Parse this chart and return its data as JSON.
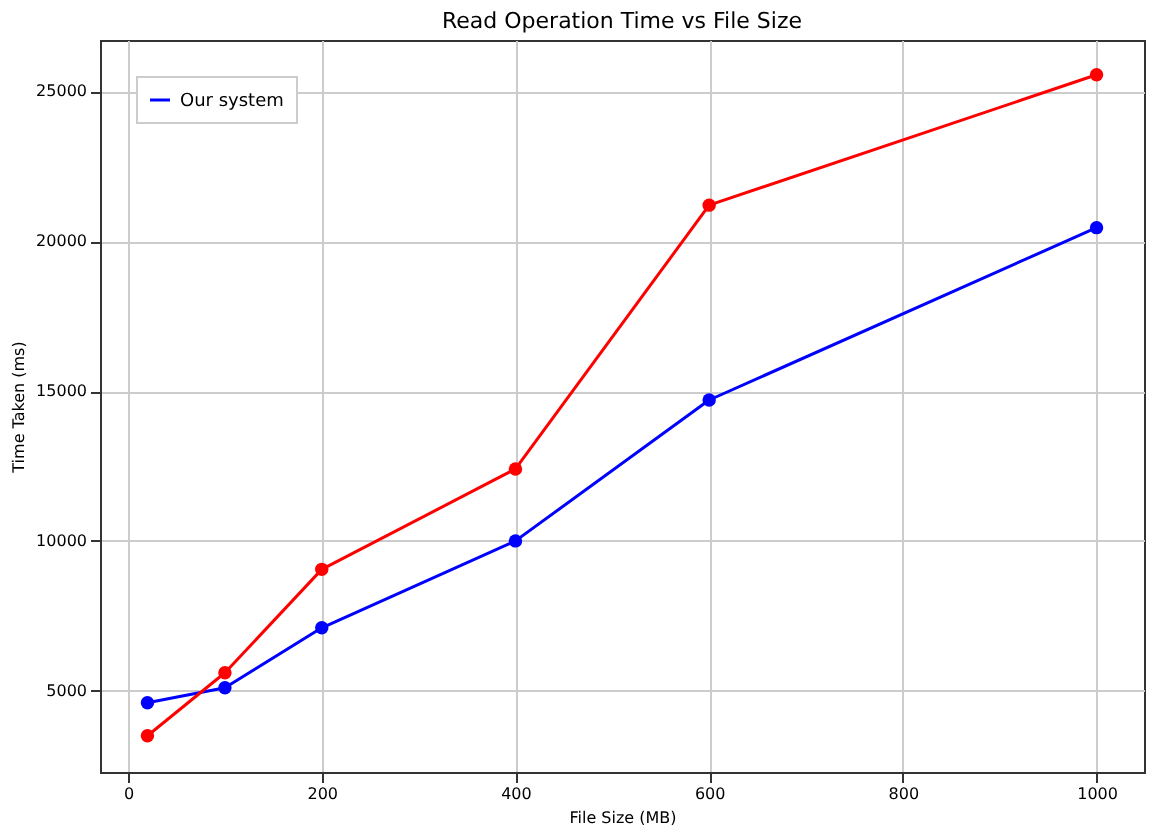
{
  "chart_data": {
    "type": "line",
    "title": "Read Operation Time vs File Size",
    "xlabel": "File Size (MB)",
    "ylabel": "Time Taken (ms)",
    "x": [
      20,
      100,
      200,
      400,
      600,
      1000
    ],
    "series": [
      {
        "name": "Our system",
        "color": "#0000ff",
        "values": [
          4600,
          5100,
          7100,
          10000,
          14700,
          20450
        ]
      },
      {
        "color": "#ff0000",
        "values": [
          3500,
          5600,
          9050,
          12400,
          21200,
          25550
        ]
      }
    ],
    "xlim": [
      -29,
      1049
    ],
    "xticks": [
      0,
      200,
      400,
      600,
      800,
      1000
    ],
    "ylim": [
      2290,
      26710
    ],
    "yticks": [
      5000,
      10000,
      15000,
      20000,
      25000
    ],
    "grid": true,
    "legend": "top left",
    "marker": "circle",
    "line_style": "solid"
  }
}
